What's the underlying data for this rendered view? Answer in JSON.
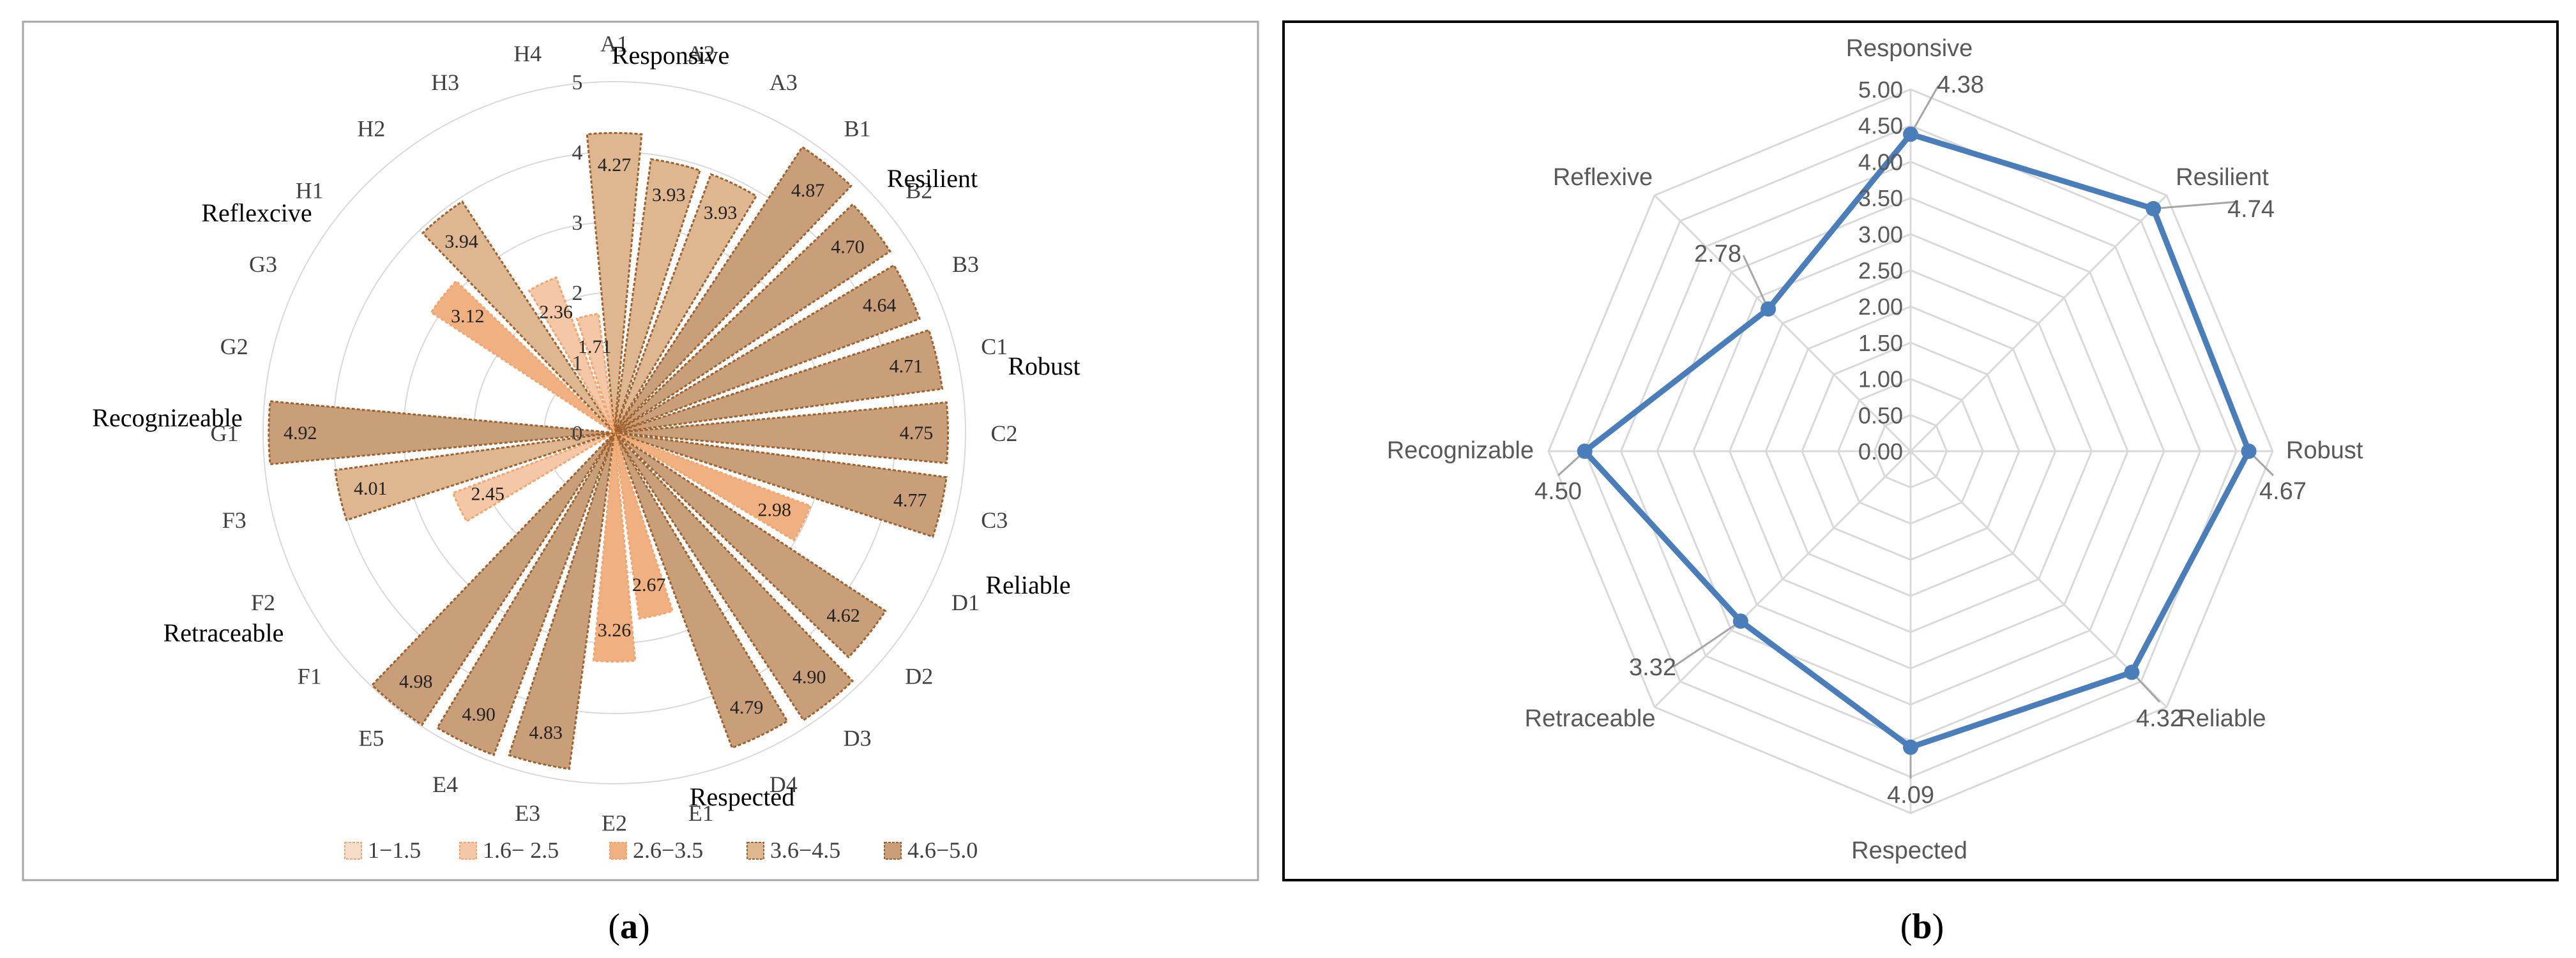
{
  "colors": {
    "tier1": "#f6dccb",
    "tier2": "#f4c7a6",
    "tier3": "#f0b07f",
    "tier4": "#deb690",
    "tier5": "#c99f79",
    "border_light": "#f4a46c",
    "border_dark": "#a0612d",
    "radar_line": "#4a7ebb",
    "grid": "#d9d9d9",
    "label_text": "#595959",
    "frame_a": "#a6a6a6",
    "frame_b": "#000000"
  },
  "captions": {
    "a_open": "(",
    "a_letter": "a",
    "a_close": ")",
    "b_open": "(",
    "b_letter": "b",
    "b_close": ")"
  },
  "chart_data": [
    {
      "type": "polar-bar",
      "title": "",
      "radial_range": [
        0,
        5
      ],
      "radial_ticks": [
        "0",
        "1",
        "2",
        "3",
        "4",
        "5"
      ],
      "categories": [
        "A1",
        "A2",
        "A3",
        "B1",
        "B2",
        "B3",
        "C1",
        "C2",
        "C3",
        "D1",
        "D2",
        "D3",
        "D4",
        "E1",
        "E2",
        "E3",
        "E4",
        "E5",
        "F1",
        "F2",
        "F3",
        "G1",
        "G2",
        "G3",
        "H1",
        "H2",
        "H3",
        "H4"
      ],
      "values": [
        4.27,
        3.93,
        3.93,
        4.87,
        4.7,
        4.64,
        4.71,
        4.75,
        4.77,
        2.98,
        4.62,
        4.9,
        4.79,
        2.67,
        3.26,
        4.83,
        4.9,
        4.98,
        null,
        2.45,
        4.01,
        4.92,
        null,
        null,
        3.12,
        3.94,
        2.36,
        1.71
      ],
      "value_labels": [
        "4.27",
        "3.93",
        "3.93",
        "4.87",
        "4.70",
        "4.64",
        "4.71",
        "4.75",
        "4.77",
        "2.98",
        "4.62",
        "4.90",
        "4.79",
        "2.67",
        "3.26",
        "4.83",
        "4.90",
        "4.98",
        "",
        "2.45",
        "4.01",
        "4.92",
        "",
        "",
        "3.12",
        "3.94",
        "2.36",
        "1.71"
      ],
      "groups": [
        {
          "name": "Responsive",
          "members": [
            "A1",
            "A2",
            "A3"
          ]
        },
        {
          "name": "Resilient",
          "members": [
            "B1",
            "B2",
            "B3"
          ]
        },
        {
          "name": "Robust",
          "members": [
            "C1",
            "C2",
            "C3"
          ]
        },
        {
          "name": "Reliable",
          "members": [
            "D1",
            "D2",
            "D3",
            "D4"
          ]
        },
        {
          "name": "Respected",
          "members": [
            "E1",
            "E2",
            "E3",
            "E4",
            "E5"
          ]
        },
        {
          "name": "Retraceable",
          "members": [
            "F1",
            "F2",
            "F3"
          ]
        },
        {
          "name": "Recognizeable",
          "members": [
            "G1",
            "G2",
            "G3"
          ]
        },
        {
          "name": "Reflexcive",
          "members": [
            "H1",
            "H2",
            "H3",
            "H4"
          ]
        }
      ],
      "legend": [
        "1−1.5",
        "1.6− 2.5",
        "2.6−3.5",
        "3.6−4.5",
        "4.6−5.0"
      ],
      "legend_position": "bottom"
    },
    {
      "type": "radar",
      "title": "",
      "radial_range": [
        0,
        5
      ],
      "radial_ticks": [
        "0.00",
        "0.50",
        "1.00",
        "1.50",
        "2.00",
        "2.50",
        "3.00",
        "3.50",
        "4.00",
        "4.50",
        "5.00"
      ],
      "categories": [
        "Responsive",
        "Resilient",
        "Robust",
        "Reliable",
        "Respected",
        "Retraceable",
        "Recognizable",
        "Reflexive"
      ],
      "values": [
        4.38,
        4.74,
        4.67,
        4.32,
        4.09,
        3.32,
        4.5,
        2.78
      ],
      "value_labels": [
        "4.38",
        "4.74",
        "4.67",
        "4.32",
        "4.09",
        "3.32",
        "4.50",
        "2.78"
      ],
      "grid": true
    }
  ]
}
